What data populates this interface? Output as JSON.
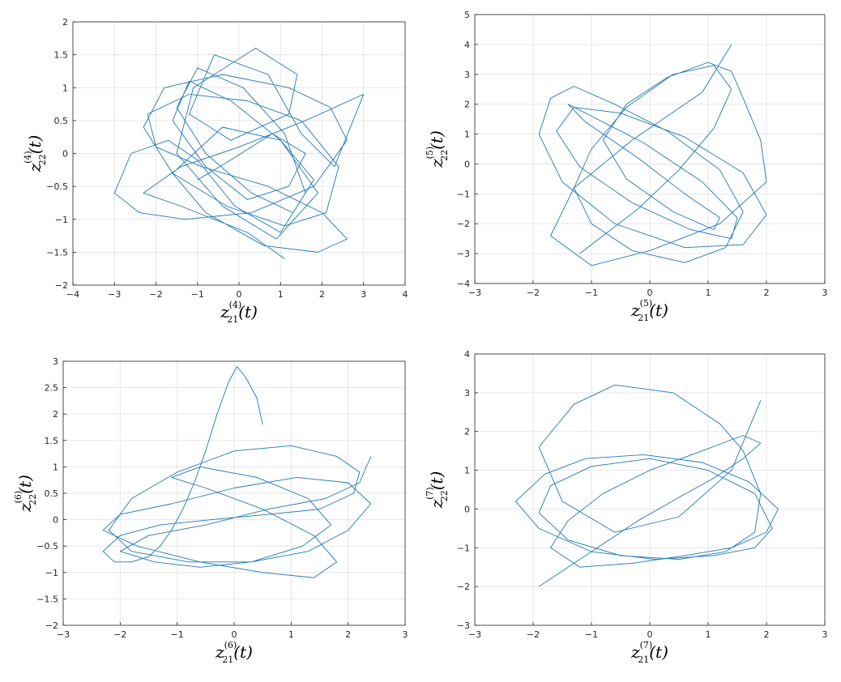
{
  "chart_data": [
    {
      "type": "line",
      "xlabel_base": "z",
      "xlabel_sup": "(4)",
      "xlabel_sub": "21",
      "xlabel_arg": "(t)",
      "ylabel_base": "z",
      "ylabel_sup": "(4)",
      "ylabel_sub": "22",
      "ylabel_arg": "(t)",
      "xlim": [
        -4,
        4
      ],
      "ylim": [
        -2,
        2
      ],
      "xticks": [
        -4,
        -3,
        -2,
        -1,
        0,
        1,
        2,
        3,
        4
      ],
      "yticks": [
        -2,
        -1.5,
        -1,
        -0.5,
        0,
        0.5,
        1,
        1.5,
        2
      ],
      "grid": true,
      "color": "#1f77b4",
      "series": [
        {
          "x": [
            -1.0,
            -0.2,
            0.8,
            1.6,
            1.2,
            0.2,
            -0.8,
            -1.6,
            -1.2,
            -0.2,
            1.0,
            1.8,
            1.3,
            0.3,
            -0.8,
            -1.5,
            -1.0,
            0.1,
            1.1,
            1.6,
            1.0,
            -0.1,
            -1.0,
            -1.7,
            -2.6,
            -3.0,
            -2.4,
            -1.3,
            0.3,
            1.8,
            2.6,
            2.2,
            1.2,
            -0.4,
            -1.8,
            -2.3,
            -1.6,
            -0.3,
            1.1,
            2.1,
            2.4,
            1.5,
            0.2,
            -1.2,
            -2.2,
            -2.0,
            -0.9,
            0.7,
            2.0,
            2.6,
            1.9,
            0.6,
            -0.8,
            -1.6,
            -0.4,
            1.0,
            1.9,
            0.9,
            -0.4,
            -1.5,
            -1.1,
            0.4,
            1.4,
            1.2,
            -0.2,
            -1.2,
            -0.6,
            0.7,
            1.5,
            2.3,
            3.0,
            1.6,
            0.0,
            -1.4,
            -2.3,
            -1.4,
            0.2,
            1.1
          ],
          "y": [
            -0.4,
            -0.1,
            0.3,
            0.0,
            -0.5,
            -0.7,
            -0.2,
            0.5,
            1.1,
            0.8,
            0.2,
            -0.4,
            -0.9,
            -0.6,
            0.0,
            0.7,
            1.3,
            1.0,
            0.3,
            -0.6,
            -1.2,
            -0.8,
            -0.1,
            0.2,
            0.0,
            -0.6,
            -0.9,
            -1.0,
            -0.9,
            -0.5,
            0.2,
            0.7,
            1.0,
            1.2,
            1.0,
            0.4,
            -0.3,
            -0.8,
            -1.1,
            -0.9,
            -0.2,
            0.5,
            0.8,
            0.9,
            0.6,
            0.1,
            -0.2,
            -0.5,
            -0.9,
            -1.3,
            -1.5,
            -1.4,
            -0.9,
            -0.3,
            0.4,
            0.2,
            -0.6,
            -1.3,
            -0.8,
            0.0,
            1.0,
            1.6,
            1.2,
            0.6,
            0.2,
            0.6,
            1.5,
            1.2,
            0.3,
            -0.2,
            0.9,
            0.5,
            0.1,
            -0.2,
            -0.6,
            -0.8,
            -1.2,
            -1.6
          ]
        }
      ]
    },
    {
      "type": "line",
      "xlabel_base": "z",
      "xlabel_sup": "(5)",
      "xlabel_sub": "21",
      "xlabel_arg": "(t)",
      "ylabel_base": "z",
      "ylabel_sup": "(5)",
      "ylabel_sub": "22",
      "ylabel_arg": "(t)",
      "xlim": [
        -3,
        3
      ],
      "ylim": [
        -4,
        5
      ],
      "xticks": [
        -3,
        -2,
        -1,
        0,
        1,
        2,
        3
      ],
      "yticks": [
        -4,
        -3,
        -2,
        -1,
        0,
        1,
        2,
        3,
        4,
        5
      ],
      "grid": true,
      "color": "#1f77b4",
      "series": [
        {
          "x": [
            -1.2,
            -0.8,
            -0.2,
            0.5,
            1.1,
            1.4,
            1.1,
            0.4,
            -0.4,
            -1.0,
            -1.3,
            -1.0,
            -0.3,
            0.6,
            1.3,
            1.6,
            1.2,
            0.3,
            -0.6,
            -1.3,
            -1.7,
            -1.9,
            -1.5,
            -0.6,
            0.6,
            1.6,
            2.0,
            1.6,
            0.6,
            -0.5,
            -1.3,
            -1.6,
            -1.2,
            -0.3,
            0.7,
            1.4,
            1.5,
            0.9,
            -0.1,
            -1.0,
            -1.4,
            -1.1,
            -0.2,
            0.6,
            1.2,
            1.1,
            0.4,
            -0.4,
            -0.8,
            -0.4,
            0.3,
            1.0,
            1.4,
            1.6,
            1.9,
            2.0,
            1.2,
            0.0,
            -1.0,
            -1.7,
            -1.3,
            -0.3,
            0.9,
            1.4
          ],
          "y": [
            -3.0,
            -2.4,
            -1.5,
            -0.2,
            1.2,
            2.5,
            3.3,
            3.0,
            1.9,
            0.5,
            -0.8,
            -2.0,
            -2.9,
            -3.3,
            -2.8,
            -1.6,
            -0.2,
            1.1,
            2.0,
            2.6,
            2.2,
            1.0,
            -0.6,
            -2.0,
            -2.8,
            -2.7,
            -1.7,
            -0.3,
            0.9,
            1.7,
            1.9,
            1.1,
            -0.1,
            -1.3,
            -2.2,
            -2.5,
            -1.8,
            -0.6,
            0.7,
            1.6,
            2.0,
            1.4,
            0.2,
            -1.0,
            -1.8,
            -2.2,
            -1.6,
            -0.5,
            0.8,
            2.0,
            2.9,
            3.4,
            3.1,
            2.2,
            0.8,
            -0.6,
            -2.0,
            -2.9,
            -3.4,
            -2.4,
            -0.8,
            0.8,
            2.4,
            4.0
          ]
        }
      ]
    },
    {
      "type": "line",
      "xlabel_base": "z",
      "xlabel_sup": "(6)",
      "xlabel_sub": "21",
      "xlabel_arg": "(t)",
      "ylabel_base": "z",
      "ylabel_sup": "(6)",
      "ylabel_sub": "22",
      "ylabel_arg": "(t)",
      "xlim": [
        -3,
        3
      ],
      "ylim": [
        -2,
        3
      ],
      "xticks": [
        -3,
        -2,
        -1,
        0,
        1,
        2,
        3
      ],
      "yticks": [
        -2,
        -1.5,
        -1,
        -0.5,
        0,
        0.5,
        1,
        1.5,
        2,
        2.5,
        3
      ],
      "grid": true,
      "color": "#1f77b4",
      "series": [
        {
          "x": [
            0.5,
            0.4,
            0.2,
            0.05,
            -0.1,
            -0.3,
            -0.5,
            -0.7,
            -0.9,
            -1.1,
            -1.3,
            -1.5,
            -1.8,
            -2.1,
            -2.3,
            -2.0,
            -1.3,
            -0.4,
            0.6,
            1.5,
            2.1,
            2.2,
            1.8,
            1.0,
            0.0,
            -1.0,
            -1.8,
            -2.2,
            -1.8,
            -0.8,
            0.3,
            1.3,
            2.0,
            2.4,
            2.0,
            1.1,
            0.0,
            -1.1,
            -2.0,
            -2.3,
            -1.7,
            -0.6,
            0.5,
            1.4,
            1.8,
            1.4,
            0.5,
            -0.5,
            -1.1,
            -0.6,
            0.4,
            1.3,
            1.7,
            1.2,
            0.3,
            -0.6,
            -1.4,
            -2.0,
            -1.5,
            -0.5,
            0.6,
            1.6,
            2.2,
            2.4
          ],
          "y": [
            1.8,
            2.3,
            2.7,
            2.9,
            2.6,
            2.0,
            1.3,
            0.7,
            0.2,
            -0.2,
            -0.5,
            -0.7,
            -0.8,
            -0.8,
            -0.6,
            -0.3,
            -0.1,
            0.0,
            0.1,
            0.2,
            0.5,
            0.9,
            1.2,
            1.4,
            1.3,
            0.9,
            0.4,
            -0.2,
            -0.6,
            -0.8,
            -0.8,
            -0.6,
            -0.2,
            0.3,
            0.7,
            0.8,
            0.6,
            0.3,
            0.1,
            -0.2,
            -0.5,
            -0.8,
            -1.0,
            -1.1,
            -0.8,
            -0.3,
            0.2,
            0.6,
            0.8,
            1.0,
            0.8,
            0.4,
            -0.1,
            -0.5,
            -0.8,
            -0.9,
            -0.8,
            -0.6,
            -0.3,
            -0.1,
            0.2,
            0.4,
            0.7,
            1.2
          ]
        }
      ]
    },
    {
      "type": "line",
      "xlabel_base": "z",
      "xlabel_sup": "(7)",
      "xlabel_sub": "21",
      "xlabel_arg": "(t)",
      "ylabel_base": "z",
      "ylabel_sup": "(7)",
      "ylabel_sub": "22",
      "ylabel_arg": "(t)",
      "xlim": [
        -3,
        3
      ],
      "ylim": [
        -3,
        4
      ],
      "xticks": [
        -3,
        -2,
        -1,
        0,
        1,
        2,
        3
      ],
      "yticks": [
        -3,
        -2,
        -1,
        0,
        1,
        2,
        3,
        4
      ],
      "grid": true,
      "color": "#1f77b4",
      "series": [
        {
          "x": [
            -1.9,
            -1.5,
            -0.9,
            -0.2,
            0.5,
            1.1,
            1.6,
            1.9,
            1.6,
            0.9,
            0.0,
            -0.8,
            -1.4,
            -1.7,
            -1.2,
            -0.3,
            0.6,
            1.4,
            2.0,
            2.2,
            1.7,
            0.9,
            -0.1,
            -1.1,
            -1.8,
            -2.3,
            -1.9,
            -1.0,
            0.1,
            1.1,
            1.8,
            2.1,
            1.8,
            1.0,
            0.0,
            -1.0,
            -1.7,
            -1.9,
            -1.4,
            -0.5,
            0.5,
            1.3,
            1.8,
            1.9,
            1.6,
            1.2,
            0.4,
            -0.6,
            -1.3,
            -1.9,
            -1.5,
            -0.6,
            0.5,
            1.4,
            1.9
          ],
          "y": [
            -2.0,
            -1.6,
            -1.0,
            -0.3,
            0.3,
            0.8,
            1.3,
            1.7,
            1.9,
            1.5,
            1.0,
            0.4,
            -0.3,
            -1.0,
            -1.5,
            -1.4,
            -1.2,
            -1.0,
            -0.6,
            0.0,
            0.7,
            1.2,
            1.4,
            1.3,
            0.9,
            0.2,
            -0.5,
            -1.1,
            -1.3,
            -1.2,
            -1.0,
            -0.5,
            0.4,
            1.0,
            1.3,
            1.1,
            0.6,
            -0.1,
            -0.8,
            -1.2,
            -1.3,
            -1.1,
            -0.6,
            0.4,
            1.5,
            2.2,
            3.0,
            3.2,
            2.7,
            1.6,
            0.2,
            -0.6,
            -0.2,
            1.0,
            2.8
          ]
        }
      ]
    }
  ]
}
